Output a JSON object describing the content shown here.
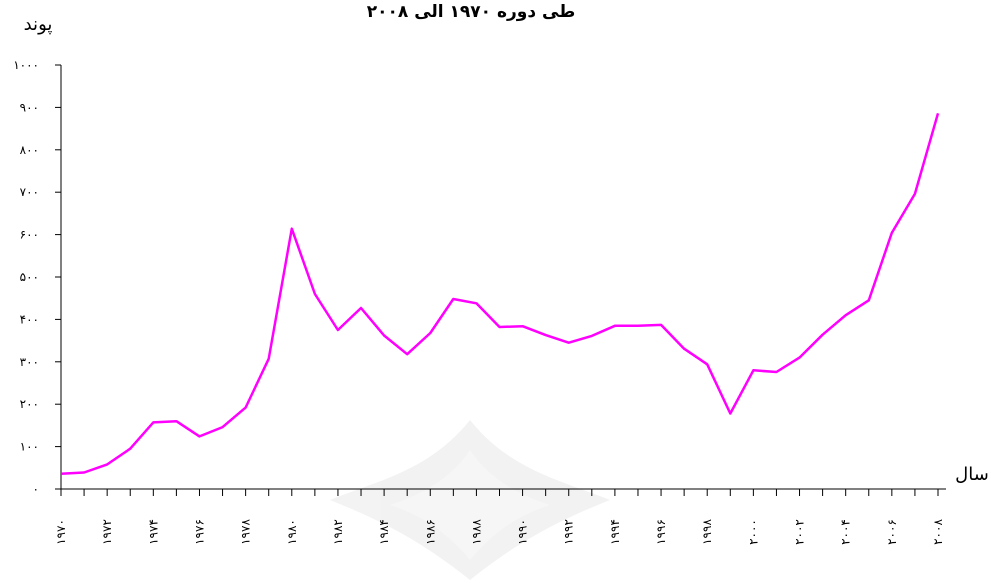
{
  "chart_data": {
    "type": "line",
    "title": "طی دوره ۱۹۷۰ الی ۲۰۰۸",
    "ylabel": "پوند",
    "xlabel": "سال",
    "ylim": [
      0,
      1000
    ],
    "y_ticks": [
      "۰",
      "۱۰۰",
      "۲۰۰",
      "۳۰۰",
      "۴۰۰",
      "۵۰۰",
      "۶۰۰",
      "۷۰۰",
      "۸۰۰",
      "۹۰۰",
      "۱۰۰۰"
    ],
    "x": [
      1970,
      1971,
      1972,
      1973,
      1974,
      1975,
      1976,
      1977,
      1978,
      1979,
      1980,
      1981,
      1982,
      1983,
      1984,
      1985,
      1986,
      1987,
      1988,
      1989,
      1990,
      1991,
      1992,
      1993,
      1994,
      1995,
      1996,
      1997,
      1998,
      1999,
      2000,
      2001,
      2002,
      2003,
      2004,
      2005,
      2006,
      2007,
      2008
    ],
    "x_tick_labels": [
      "۱۹۷۰",
      "۱۹۷۲",
      "۱۹۷۴",
      "۱۹۷۶",
      "۱۹۷۸",
      "۱۹۸۰",
      "۱۹۸۲",
      "۱۹۸۴",
      "۱۹۸۶",
      "۱۹۸۸",
      "۱۹۹۰",
      "۱۹۹۲",
      "۱۹۹۴",
      "۱۹۹۶",
      "۱۹۹۸",
      "۲۰۰۰",
      "۲۰۰۲",
      "۲۰۰۴",
      "۲۰۰۶",
      "۲۰۰۸"
    ],
    "series": [
      {
        "color": "#ff00ff",
        "values": [
          36,
          39,
          58,
          95,
          157,
          160,
          124,
          146,
          192,
          307,
          614,
          460,
          375,
          427,
          362,
          318,
          368,
          448,
          438,
          382,
          384,
          363,
          345,
          361,
          385,
          385,
          387,
          331,
          294,
          178,
          280,
          276,
          310,
          364,
          410,
          445,
          604,
          696,
          886
        ]
      }
    ],
    "grid": false,
    "legend": "none"
  }
}
